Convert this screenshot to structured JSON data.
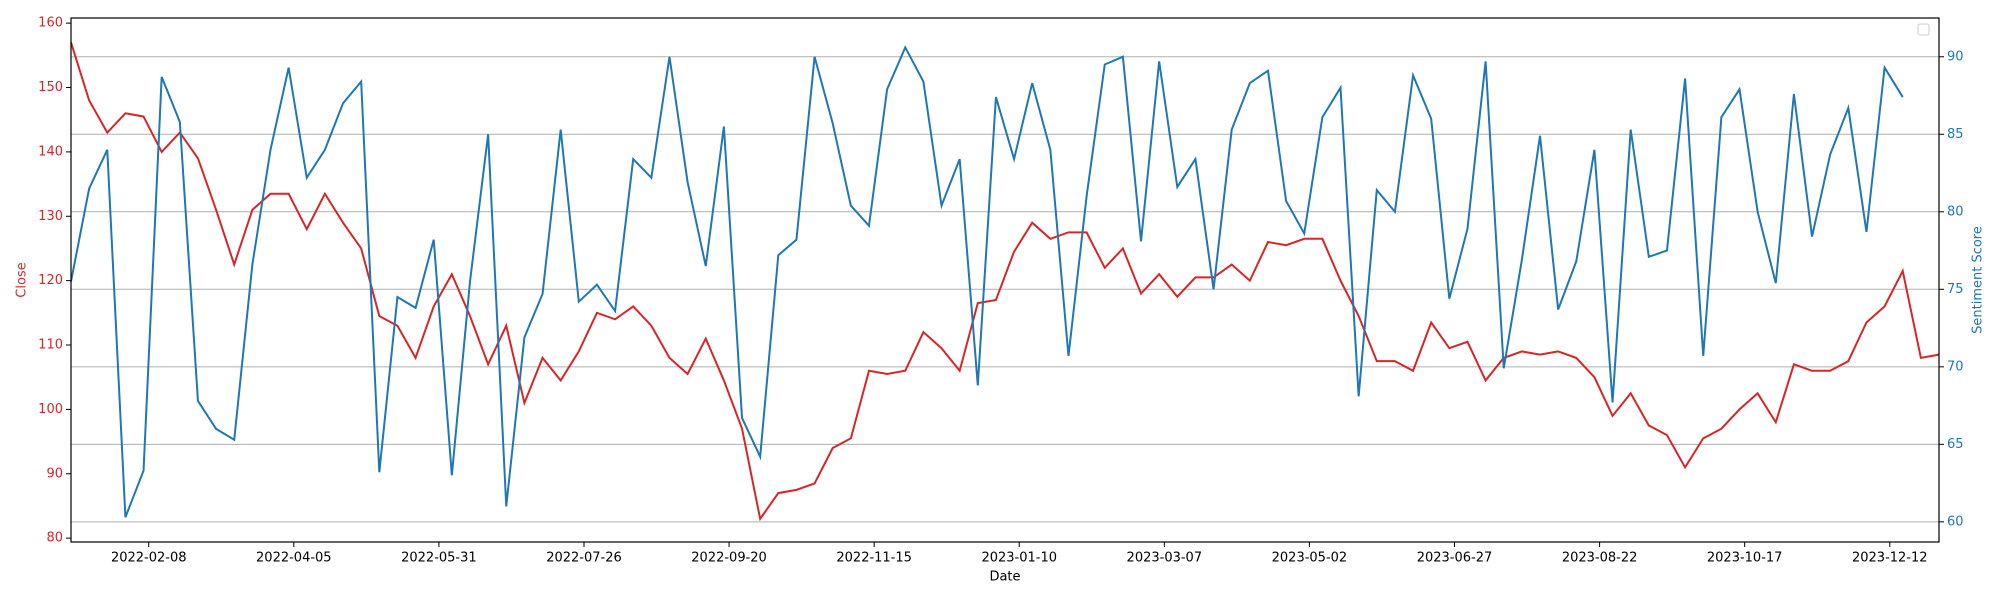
{
  "chart_data": {
    "type": "line",
    "x_label": "Date",
    "y_label": "Close",
    "y2_label": "Sentiment Score",
    "x": [
      "2022-01-09",
      "2022-01-16",
      "2022-01-23",
      "2022-01-30",
      "2022-02-06",
      "2022-02-13",
      "2022-02-20",
      "2022-02-27",
      "2022-03-06",
      "2022-03-13",
      "2022-03-20",
      "2022-03-27",
      "2022-04-03",
      "2022-04-10",
      "2022-04-17",
      "2022-04-24",
      "2022-05-01",
      "2022-05-08",
      "2022-05-15",
      "2022-05-22",
      "2022-05-29",
      "2022-06-05",
      "2022-06-12",
      "2022-06-19",
      "2022-06-26",
      "2022-07-03",
      "2022-07-10",
      "2022-07-17",
      "2022-07-24",
      "2022-07-31",
      "2022-08-07",
      "2022-08-14",
      "2022-08-21",
      "2022-08-28",
      "2022-09-04",
      "2022-09-11",
      "2022-09-18",
      "2022-09-25",
      "2022-10-02",
      "2022-10-09",
      "2022-10-16",
      "2022-10-23",
      "2022-10-30",
      "2022-11-06",
      "2022-11-13",
      "2022-11-20",
      "2022-11-27",
      "2022-12-04",
      "2022-12-11",
      "2022-12-18",
      "2022-12-25",
      "2023-01-01",
      "2023-01-08",
      "2023-01-15",
      "2023-01-22",
      "2023-01-29",
      "2023-02-05",
      "2023-02-12",
      "2023-02-19",
      "2023-02-26",
      "2023-03-05",
      "2023-03-12",
      "2023-03-19",
      "2023-03-26",
      "2023-04-02",
      "2023-04-09",
      "2023-04-16",
      "2023-04-23",
      "2023-04-30",
      "2023-05-07",
      "2023-05-14",
      "2023-05-21",
      "2023-05-28",
      "2023-06-04",
      "2023-06-11",
      "2023-06-18",
      "2023-06-25",
      "2023-07-02",
      "2023-07-09",
      "2023-07-16",
      "2023-07-23",
      "2023-07-30",
      "2023-08-06",
      "2023-08-13",
      "2023-08-20",
      "2023-08-27",
      "2023-09-03",
      "2023-09-10",
      "2023-09-17",
      "2023-09-24",
      "2023-10-01",
      "2023-10-08",
      "2023-10-15",
      "2023-10-22",
      "2023-10-29",
      "2023-11-05",
      "2023-11-12",
      "2023-11-19",
      "2023-11-26",
      "2023-12-03",
      "2023-12-10",
      "2023-12-17",
      "2023-12-24",
      "2023-12-31"
    ],
    "series": [
      {
        "name": "Close",
        "color": "#d62728",
        "values": [
          157,
          148,
          143,
          146,
          145.5,
          140,
          143,
          139,
          131,
          122.5,
          131,
          133.5,
          133.5,
          128,
          133.5,
          129,
          125,
          114.5,
          113,
          108,
          116,
          121,
          114.5,
          107,
          113,
          101,
          108,
          104.5,
          109,
          115,
          114,
          116,
          113,
          108,
          105.5,
          111,
          104.5,
          97,
          83,
          87,
          87.5,
          88.5,
          94,
          95.5,
          106,
          105.5,
          106,
          112,
          109.5,
          106,
          116.5,
          117,
          124.5,
          129,
          126.5,
          127.5,
          127.5,
          122,
          125,
          118,
          121,
          117.5,
          120.5,
          120.5,
          122.5,
          120,
          126,
          125.5,
          126.5,
          126.5,
          120,
          114.5,
          107.5,
          107.5,
          106,
          113.5,
          109.5,
          110.5,
          104.5,
          108,
          109,
          108.5,
          109,
          108,
          105,
          99,
          102.5,
          97.5,
          96,
          91,
          95.5,
          97,
          100,
          102.5,
          98,
          107,
          106,
          106,
          107.5,
          113.5,
          116,
          121.5,
          108,
          108.5
        ]
      },
      {
        "name": "Sentiment Score",
        "color": "#1f77b4",
        "axis": "y2",
        "values": [
          75.5,
          81.5,
          84,
          60.3,
          63.3,
          88.7,
          85.8,
          67.8,
          66,
          65.3,
          76.6,
          84,
          89.3,
          82.2,
          84,
          87,
          88.4,
          63.2,
          74.5,
          73.8,
          78.2,
          63,
          75.5,
          85,
          61,
          71.9,
          74.7,
          85.3,
          74.2,
          75.3,
          73.6,
          83.4,
          82.2,
          90,
          81.9,
          76.5,
          85.5,
          66.7,
          64.2,
          77.2,
          78.2,
          90,
          85.7,
          80.4,
          79.1,
          87.9,
          90.6,
          88.4,
          80.4,
          83.4,
          68.8,
          87.4,
          83.4,
          88.3,
          84,
          70.7,
          81,
          89.5,
          90,
          78.1,
          89.7,
          81.6,
          83.4,
          75,
          85.3,
          88.3,
          89.1,
          80.7,
          78.6,
          86.1,
          88,
          68.1,
          81.4,
          80,
          88.8,
          86,
          74.4,
          78.9,
          89.7,
          69.9,
          76.9,
          84.9,
          73.7,
          76.8,
          84,
          67.7,
          85.3,
          77.1,
          77.5,
          88.6,
          70.7,
          86.1,
          87.9,
          80,
          75.4,
          87.6,
          78.4,
          83.7,
          86.7,
          78.7,
          89.3,
          87.4,
          null,
          null
        ]
      }
    ],
    "xlim": [
      "2022-01-09",
      "2023-12-31"
    ],
    "xticks": [
      "2022-02-08",
      "2022-04-05",
      "2022-05-31",
      "2022-07-26",
      "2022-09-20",
      "2022-11-15",
      "2023-01-10",
      "2023-03-07",
      "2023-05-02",
      "2023-06-27",
      "2023-08-22",
      "2023-10-17",
      "2023-12-12"
    ],
    "ylim": [
      79.4,
      160.8
    ],
    "yticks": [
      80,
      90,
      100,
      110,
      120,
      130,
      140,
      150,
      160
    ],
    "y2lim": [
      58.7,
      92.5
    ],
    "y2ticks": [
      60,
      65,
      70,
      75,
      80,
      85,
      90
    ],
    "grid": "y2"
  }
}
